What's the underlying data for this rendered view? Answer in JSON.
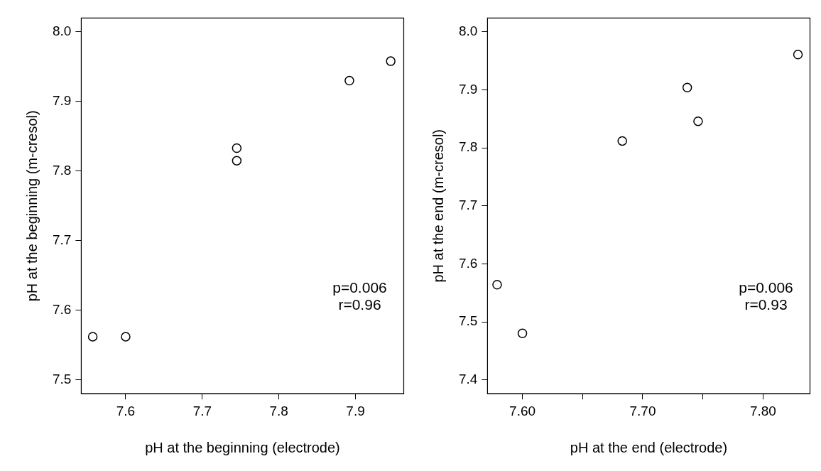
{
  "chart_data": [
    {
      "type": "scatter",
      "xlabel": "pH at the beginning (electrode)",
      "ylabel": "pH at the beginning (m-cresol)",
      "marker": "circle",
      "grid": false,
      "annotations": [
        "p=0.006",
        "r=0.96"
      ],
      "series": [
        {
          "color": "#000000",
          "x": [
            7.557,
            7.6,
            7.745,
            7.745,
            7.892,
            7.946
          ],
          "values": [
            7.562,
            7.562,
            7.833,
            7.815,
            7.93,
            7.958
          ]
        }
      ],
      "xlim": [
        7.542,
        7.963
      ],
      "xticks": [
        7.6,
        7.7,
        7.8,
        7.9
      ],
      "ylim": [
        7.48,
        8.02
      ],
      "yticks": [
        7.5,
        7.6,
        7.7,
        7.8,
        7.9,
        {
          "value": 8.0,
          "label": "8.0"
        }
      ]
    },
    {
      "type": "scatter",
      "xlabel": "pH at the end (electrode)",
      "ylabel": "pH at the end (m-cresol)",
      "marker": "circle",
      "grid": false,
      "annotations": [
        "p=0.006",
        "r=0.93"
      ],
      "series": [
        {
          "color": "#000000",
          "x": [
            7.579,
            7.6,
            7.683,
            7.737,
            7.746,
            7.829
          ],
          "values": [
            7.564,
            7.48,
            7.812,
            7.904,
            7.846,
            7.961
          ]
        }
      ],
      "xlim": [
        7.571,
        7.839
      ],
      "xticks": [
        {
          "value": 7.6,
          "label": "7.60"
        },
        {
          "value": 7.65,
          "label": null
        },
        {
          "value": 7.7,
          "label": "7.70"
        },
        {
          "value": 7.75,
          "label": null
        },
        {
          "value": 7.8,
          "label": "7.80"
        }
      ],
      "ylim": [
        7.376,
        8.024
      ],
      "yticks": [
        7.4,
        7.5,
        7.6,
        7.7,
        7.8,
        7.9,
        {
          "value": 8.0,
          "label": "8.0"
        }
      ]
    }
  ]
}
